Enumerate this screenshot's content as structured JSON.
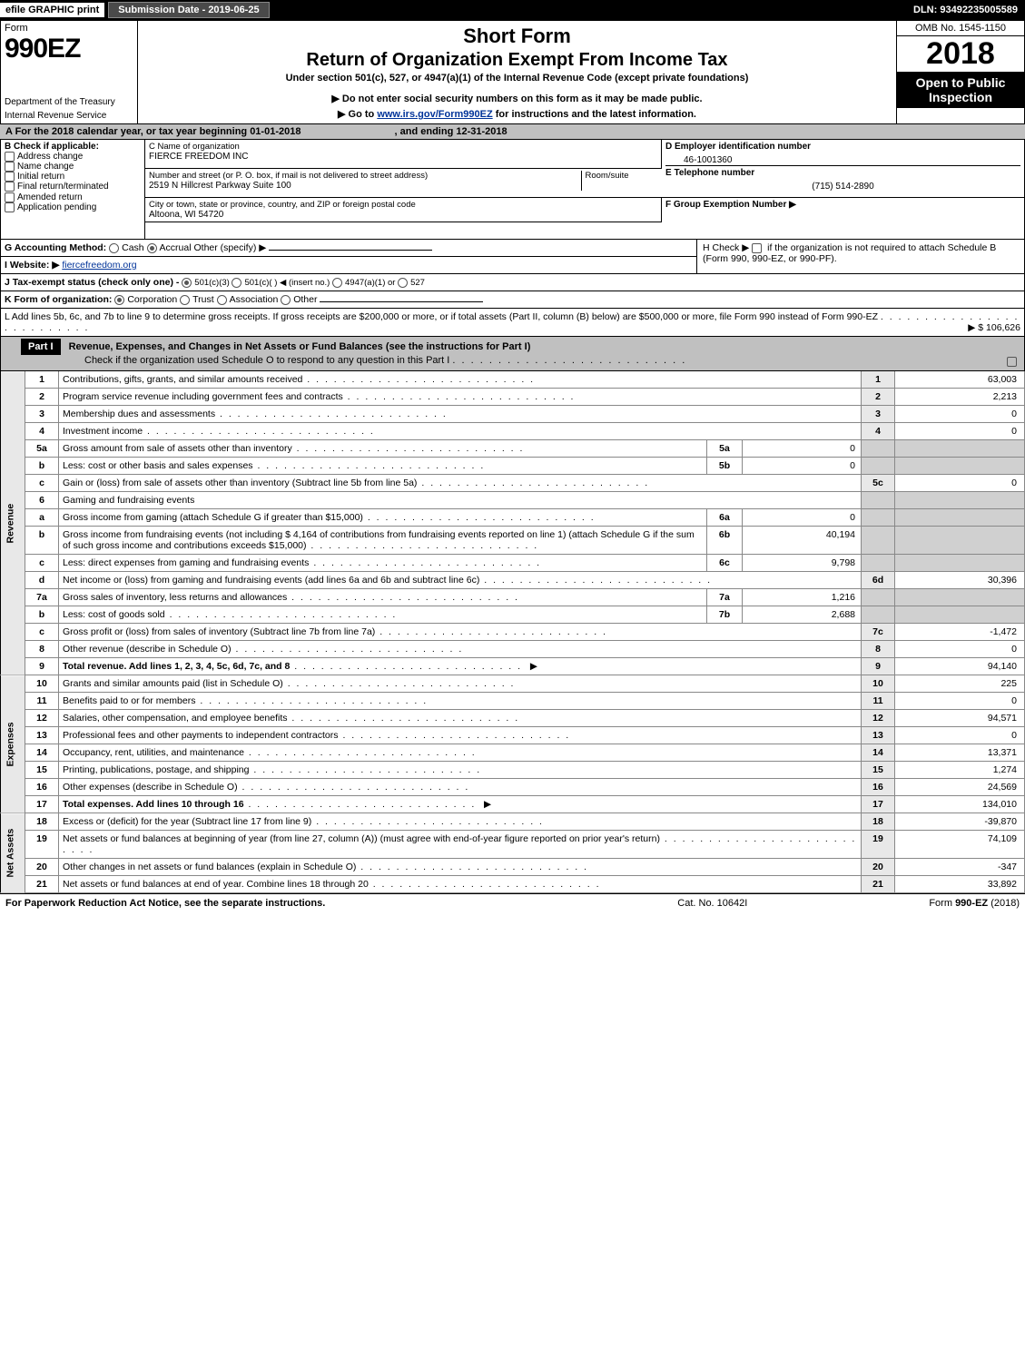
{
  "topbar": {
    "efile": "efile GRAPHIC print",
    "submission": "Submission Date - 2019-06-25",
    "dln": "DLN: 93492235005589"
  },
  "header": {
    "form_label": "Form",
    "form_number": "990EZ",
    "dept1": "Department of the Treasury",
    "dept2": "Internal Revenue Service",
    "short_form": "Short Form",
    "return_title": "Return of Organization Exempt From Income Tax",
    "under": "Under section 501(c), 527, or 4947(a)(1) of the Internal Revenue Code (except private foundations)",
    "warn": "▶ Do not enter social security numbers on this form as it may be made public.",
    "goto_prefix": "▶ Go to ",
    "goto_link": "www.irs.gov/Form990EZ",
    "goto_suffix": " for instructions and the latest information.",
    "omb": "OMB No. 1545-1150",
    "year": "2018",
    "open": "Open to Public Inspection"
  },
  "period": {
    "text_a": "A  For the 2018 calendar year, or tax year beginning 01-01-2018",
    "text_b": ", and ending 12-31-2018"
  },
  "boxB": {
    "title": "B  Check if applicable:",
    "items": [
      "Address change",
      "Name change",
      "Initial return",
      "Final return/terminated",
      "Amended return",
      "Application pending"
    ]
  },
  "boxC": {
    "label": "C Name of organization",
    "org": "FIERCE FREEDOM INC",
    "addr_label": "Number and street (or P. O. box, if mail is not delivered to street address)",
    "room_label": "Room/suite",
    "addr": "2519 N Hillcrest Parkway Suite 100",
    "city_label": "City or town, state or province, country, and ZIP or foreign postal code",
    "city": "Altoona, WI  54720"
  },
  "boxD": {
    "label": "D Employer identification number",
    "ein": "46-1001360"
  },
  "boxE": {
    "label": "E Telephone number",
    "phone": "(715) 514-2890"
  },
  "boxF": {
    "label": "F Group Exemption Number  ▶"
  },
  "lineG": {
    "label": "G Accounting Method:",
    "cash": "Cash",
    "accrual": "Accrual",
    "other": "Other (specify) ▶"
  },
  "lineH": {
    "text1": "H  Check ▶ ",
    "text2": " if the organization is not required to attach Schedule B",
    "text3": "(Form 990, 990-EZ, or 990-PF)."
  },
  "lineI": {
    "label": "I Website: ▶",
    "site": "fiercefreedom.org"
  },
  "lineJ": {
    "label": "J Tax-exempt status (check only one) - ",
    "o1": "501(c)(3)",
    "o2": "501(c)( )  ◀ (insert no.)",
    "o3": "4947(a)(1) or",
    "o4": "527"
  },
  "lineK": {
    "label": "K Form of organization:",
    "o1": "Corporation",
    "o2": "Trust",
    "o3": "Association",
    "o4": "Other"
  },
  "lineL": {
    "text": "L Add lines 5b, 6c, and 7b to line 9 to determine gross receipts. If gross receipts are $200,000 or more, or if total assets (Part II, column (B) below) are $500,000 or more, file Form 990 instead of Form 990-EZ",
    "amount": "▶ $ 106,626"
  },
  "part1": {
    "label": "Part I",
    "title": "Revenue, Expenses, and Changes in Net Assets or Fund Balances (see the instructions for Part I)",
    "check": "Check if the organization used Schedule O to respond to any question in this Part I"
  },
  "sections": {
    "revenue": "Revenue",
    "expenses": "Expenses",
    "netassets": "Net Assets"
  },
  "lines": [
    {
      "n": "1",
      "d": "Contributions, gifts, grants, and similar amounts received",
      "rn": "1",
      "rv": "63,003"
    },
    {
      "n": "2",
      "d": "Program service revenue including government fees and contracts",
      "rn": "2",
      "rv": "2,213"
    },
    {
      "n": "3",
      "d": "Membership dues and assessments",
      "rn": "3",
      "rv": "0"
    },
    {
      "n": "4",
      "d": "Investment income",
      "rn": "4",
      "rv": "0"
    },
    {
      "n": "5a",
      "d": "Gross amount from sale of assets other than inventory",
      "sn": "5a",
      "sv": "0"
    },
    {
      "n": "b",
      "d": "Less: cost or other basis and sales expenses",
      "sn": "5b",
      "sv": "0"
    },
    {
      "n": "c",
      "d": "Gain or (loss) from sale of assets other than inventory (Subtract line 5b from line 5a)",
      "rn": "5c",
      "rv": "0"
    },
    {
      "n": "6",
      "d": "Gaming and fundraising events"
    },
    {
      "n": "a",
      "d": "Gross income from gaming (attach Schedule G if greater than $15,000)",
      "sn": "6a",
      "sv": "0"
    },
    {
      "n": "b",
      "d": "Gross income from fundraising events (not including $  4,164         of contributions from fundraising events reported on line 1) (attach Schedule G if the sum of such gross income and contributions exceeds $15,000)",
      "sn": "6b",
      "sv": "40,194"
    },
    {
      "n": "c",
      "d": "Less: direct expenses from gaming and fundraising events",
      "sn": "6c",
      "sv": "9,798"
    },
    {
      "n": "d",
      "d": "Net income or (loss) from gaming and fundraising events (add lines 6a and 6b and subtract line 6c)",
      "rn": "6d",
      "rv": "30,396"
    },
    {
      "n": "7a",
      "d": "Gross sales of inventory, less returns and allowances",
      "sn": "7a",
      "sv": "1,216"
    },
    {
      "n": "b",
      "d": "Less: cost of goods sold",
      "sn": "7b",
      "sv": "2,688"
    },
    {
      "n": "c",
      "d": "Gross profit or (loss) from sales of inventory (Subtract line 7b from line 7a)",
      "rn": "7c",
      "rv": "-1,472"
    },
    {
      "n": "8",
      "d": "Other revenue (describe in Schedule O)",
      "rn": "8",
      "rv": "0"
    },
    {
      "n": "9",
      "d": "Total revenue. Add lines 1, 2, 3, 4, 5c, 6d, 7c, and 8",
      "rn": "9",
      "rv": "94,140",
      "bold": true,
      "arrow": true
    }
  ],
  "exp_lines": [
    {
      "n": "10",
      "d": "Grants and similar amounts paid (list in Schedule O)",
      "rn": "10",
      "rv": "225"
    },
    {
      "n": "11",
      "d": "Benefits paid to or for members",
      "rn": "11",
      "rv": "0"
    },
    {
      "n": "12",
      "d": "Salaries, other compensation, and employee benefits",
      "rn": "12",
      "rv": "94,571"
    },
    {
      "n": "13",
      "d": "Professional fees and other payments to independent contractors",
      "rn": "13",
      "rv": "0"
    },
    {
      "n": "14",
      "d": "Occupancy, rent, utilities, and maintenance",
      "rn": "14",
      "rv": "13,371"
    },
    {
      "n": "15",
      "d": "Printing, publications, postage, and shipping",
      "rn": "15",
      "rv": "1,274"
    },
    {
      "n": "16",
      "d": "Other expenses (describe in Schedule O)",
      "rn": "16",
      "rv": "24,569"
    },
    {
      "n": "17",
      "d": "Total expenses. Add lines 10 through 16",
      "rn": "17",
      "rv": "134,010",
      "bold": true,
      "arrow": true
    }
  ],
  "na_lines": [
    {
      "n": "18",
      "d": "Excess or (deficit) for the year (Subtract line 17 from line 9)",
      "rn": "18",
      "rv": "-39,870"
    },
    {
      "n": "19",
      "d": "Net assets or fund balances at beginning of year (from line 27, column (A)) (must agree with end-of-year figure reported on prior year's return)",
      "rn": "19",
      "rv": "74,109"
    },
    {
      "n": "20",
      "d": "Other changes in net assets or fund balances (explain in Schedule O)",
      "rn": "20",
      "rv": "-347"
    },
    {
      "n": "21",
      "d": "Net assets or fund balances at end of year. Combine lines 18 through 20",
      "rn": "21",
      "rv": "33,892"
    }
  ],
  "footer": {
    "left": "For Paperwork Reduction Act Notice, see the separate instructions.",
    "cat": "Cat. No. 10642I",
    "form": "Form 990-EZ (2018)"
  }
}
